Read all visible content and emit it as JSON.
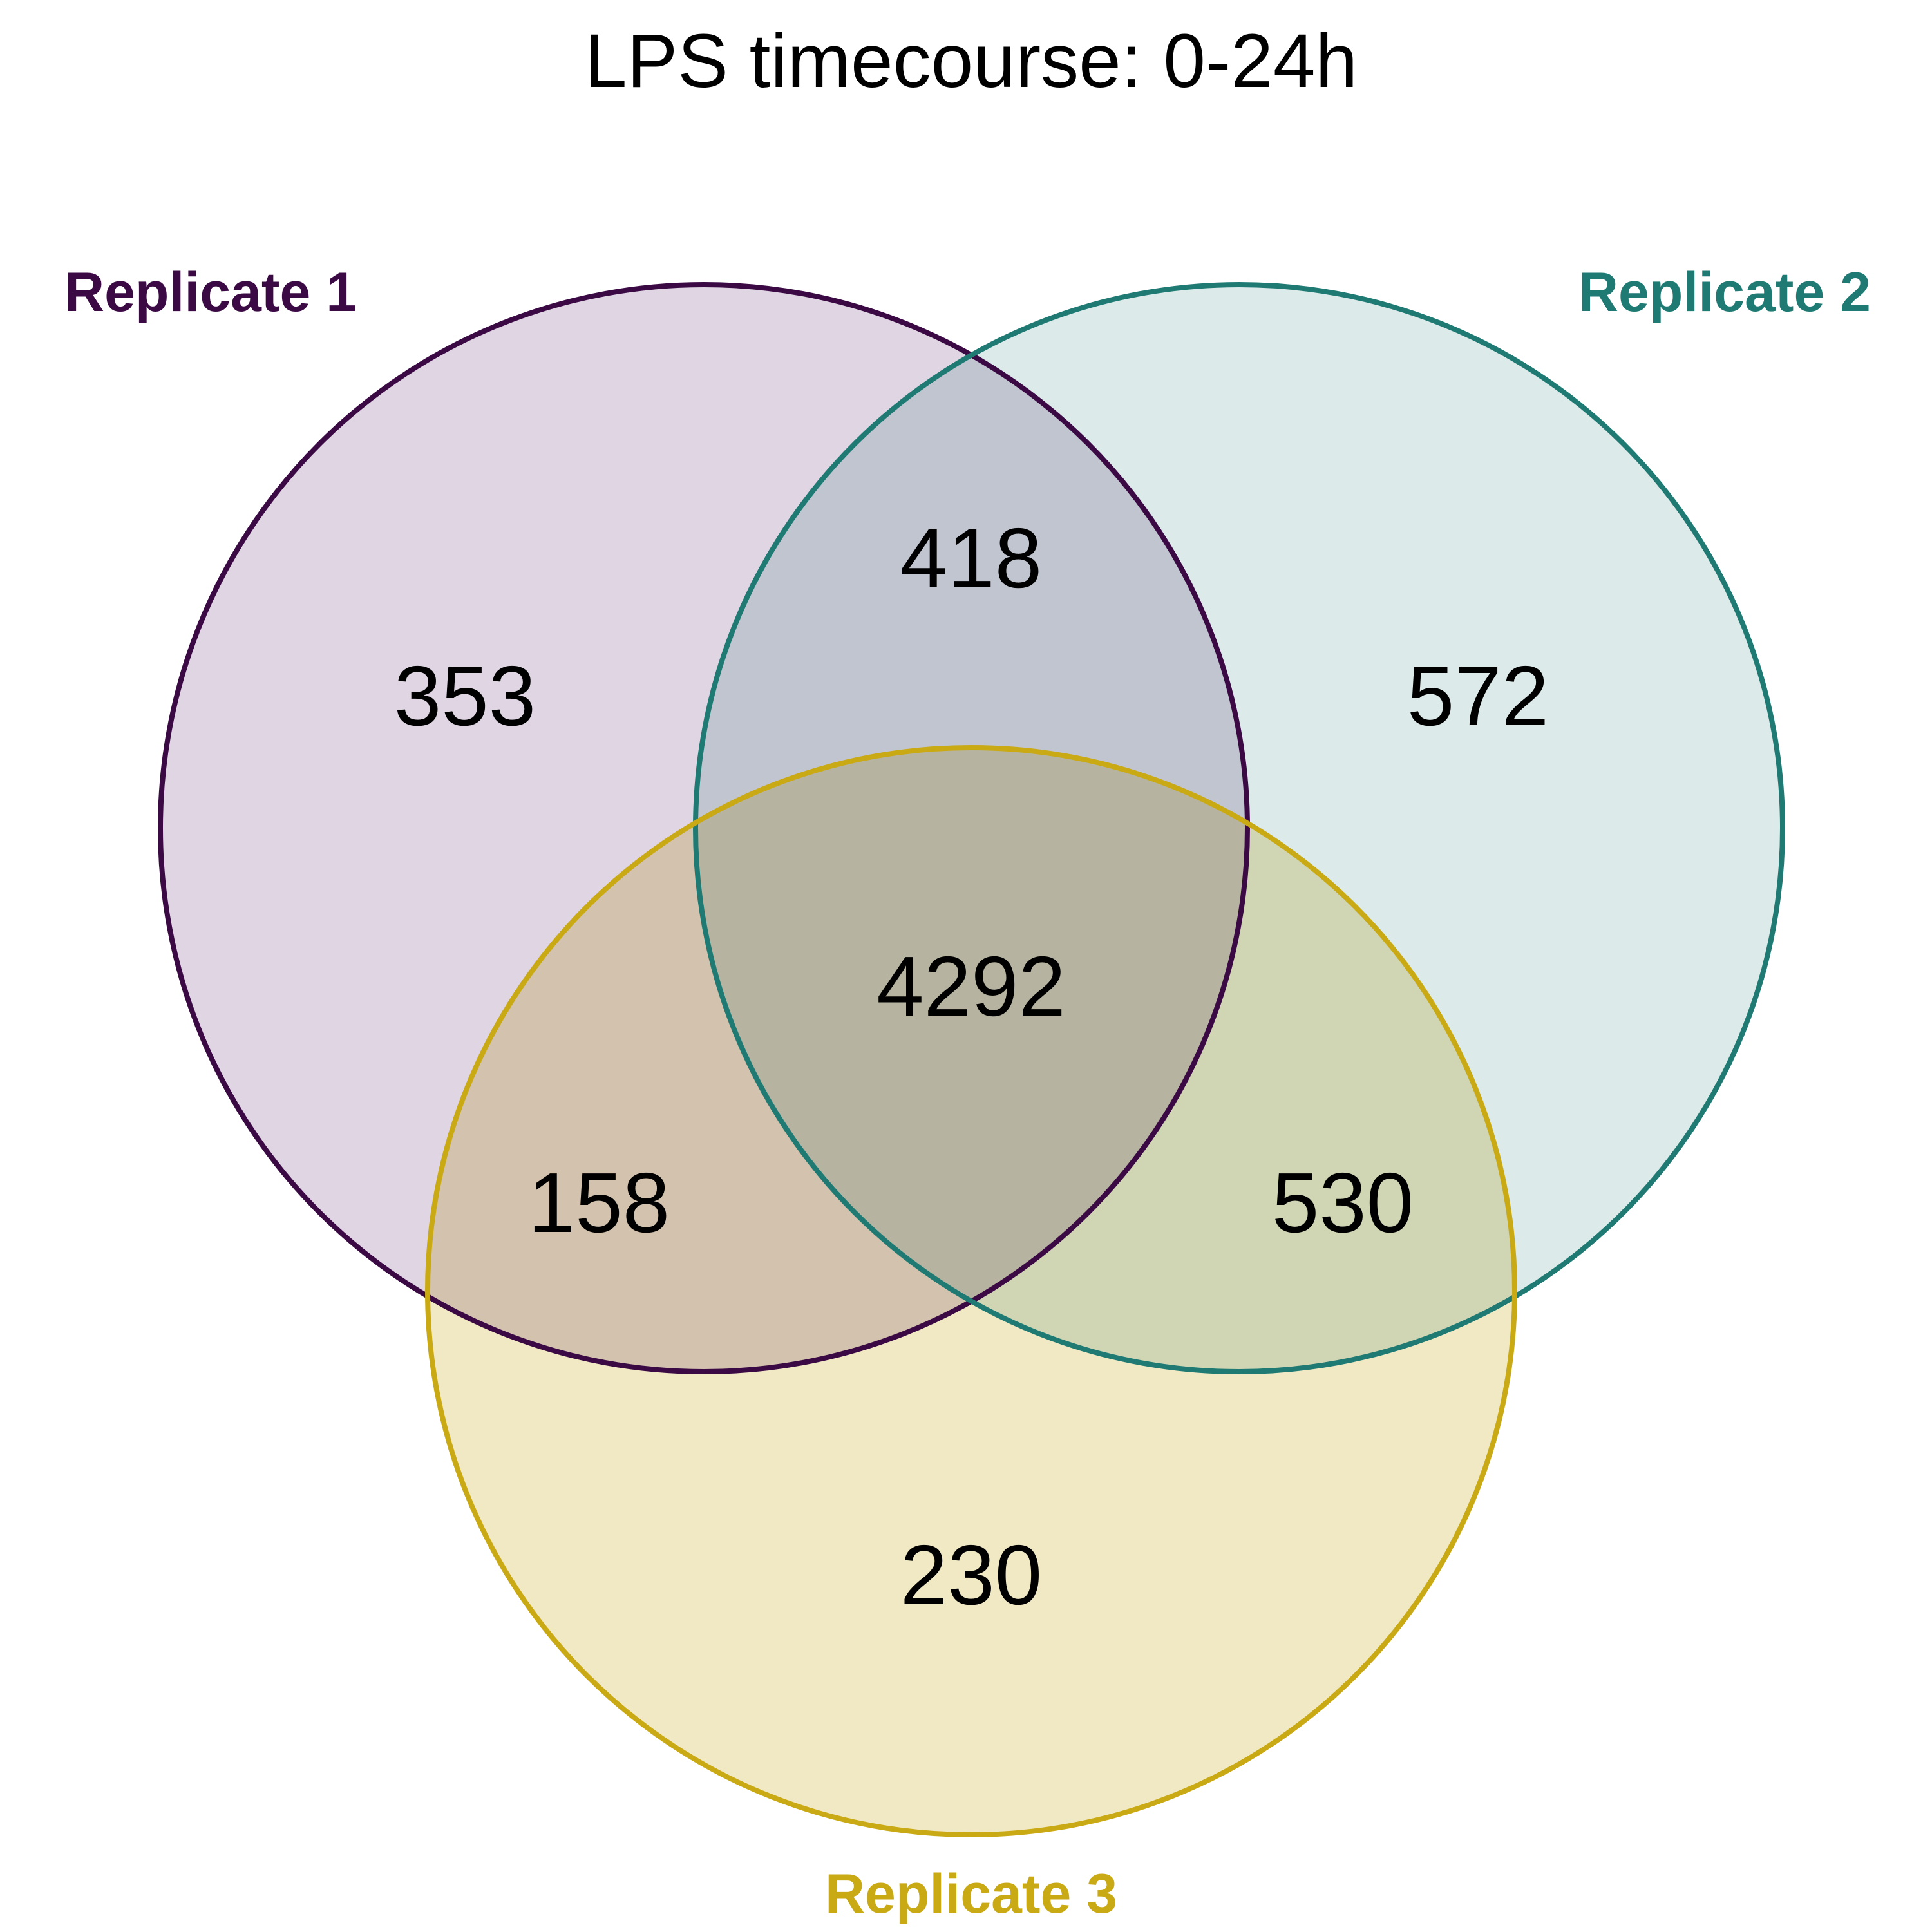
{
  "title": "LPS timecourse: 0-24h",
  "sets": [
    {
      "key": "r1",
      "label": "Replicate 1",
      "color": "#3b0a45",
      "fill": "#e0d6e3"
    },
    {
      "key": "r2",
      "label": "Replicate 2",
      "color": "#1f7a74",
      "fill": "#dcebea"
    },
    {
      "key": "r3",
      "label": "Replicate 3",
      "color": "#c9a914",
      "fill": "#f1e9c4"
    }
  ],
  "regions": {
    "r1_only": "353",
    "r2_only": "572",
    "r3_only": "230",
    "r1_r2": "418",
    "r1_r3": "158",
    "r2_r3": "530",
    "r1_r2_r3": "4292"
  }
}
